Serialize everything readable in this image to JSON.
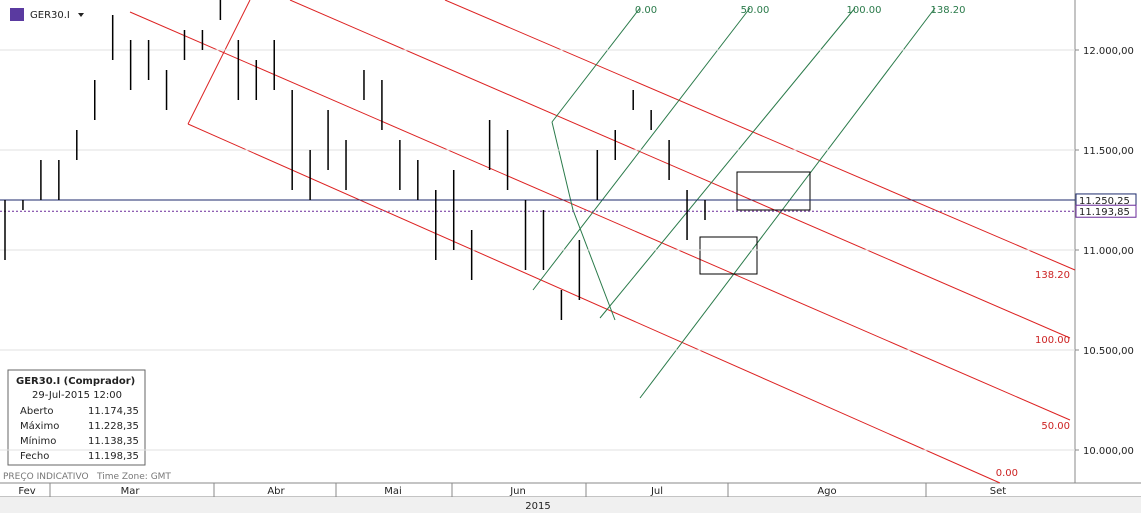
{
  "header": {
    "symbol": "GER30.I"
  },
  "chart_data": {
    "type": "range-bar",
    "high": [
      11250,
      11250,
      11450,
      11450,
      11600,
      11850,
      12175,
      12050,
      12050,
      11900,
      12100,
      12100,
      12250,
      12050,
      11950,
      12050,
      11800,
      11500,
      11700,
      11550,
      11900,
      11850,
      11550,
      11450,
      11300,
      11400,
      11100,
      11650,
      11600,
      11250,
      11200,
      10800,
      11050,
      11500,
      11600,
      11800,
      11700,
      11550,
      11300,
      11250
    ],
    "low": [
      10950,
      11200,
      11250,
      11250,
      11450,
      11650,
      11950,
      11800,
      11850,
      11700,
      11950,
      12000,
      12150,
      11750,
      11750,
      11800,
      11300,
      11250,
      11400,
      11300,
      11750,
      11600,
      11300,
      11250,
      10950,
      11000,
      10850,
      11400,
      11300,
      10900,
      10900,
      10650,
      10750,
      11250,
      11450,
      11700,
      11600,
      11350,
      11050,
      11150
    ],
    "color": "#000000",
    "ylim": [
      9835,
      12250
    ],
    "yticks": [
      {
        "value": 10000,
        "label": "10.000,00"
      },
      {
        "value": 10500,
        "label": "10.500,00"
      },
      {
        "value": 11000,
        "label": "11.000,00"
      },
      {
        "value": 11500,
        "label": "11.500,00"
      },
      {
        "value": 12000,
        "label": "12.000,00"
      }
    ],
    "grid": true,
    "months": [
      "Fev",
      "Mar",
      "Abr",
      "Mai",
      "Jun",
      "Jul",
      "Ago",
      "Set"
    ],
    "year": "2015",
    "price_tags": [
      {
        "value": 11250.25,
        "label": "11.250,25",
        "color": "#1c2a6b"
      },
      {
        "value": 11193.85,
        "label": "11.193,85",
        "color": "#6a2a9a"
      }
    ],
    "fib_top": [
      "0.00",
      "50.00",
      "100.00",
      "138.20"
    ],
    "fib_right": [
      "138.20",
      "100.00",
      "50.00",
      "0.00"
    ]
  },
  "info_panel": {
    "title": "GER30.I (Comprador)",
    "date": "29-Jul-2015 12:00",
    "rows": [
      [
        "Aberto",
        "11.174,35"
      ],
      [
        "Máximo",
        "11.228,35"
      ],
      [
        "Mínimo",
        "11.138,35"
      ],
      [
        "Fecho",
        "11.198,35"
      ]
    ]
  },
  "footer": {
    "note": "PREÇO INDICATIVO",
    "timezone": "Time Zone: GMT"
  }
}
